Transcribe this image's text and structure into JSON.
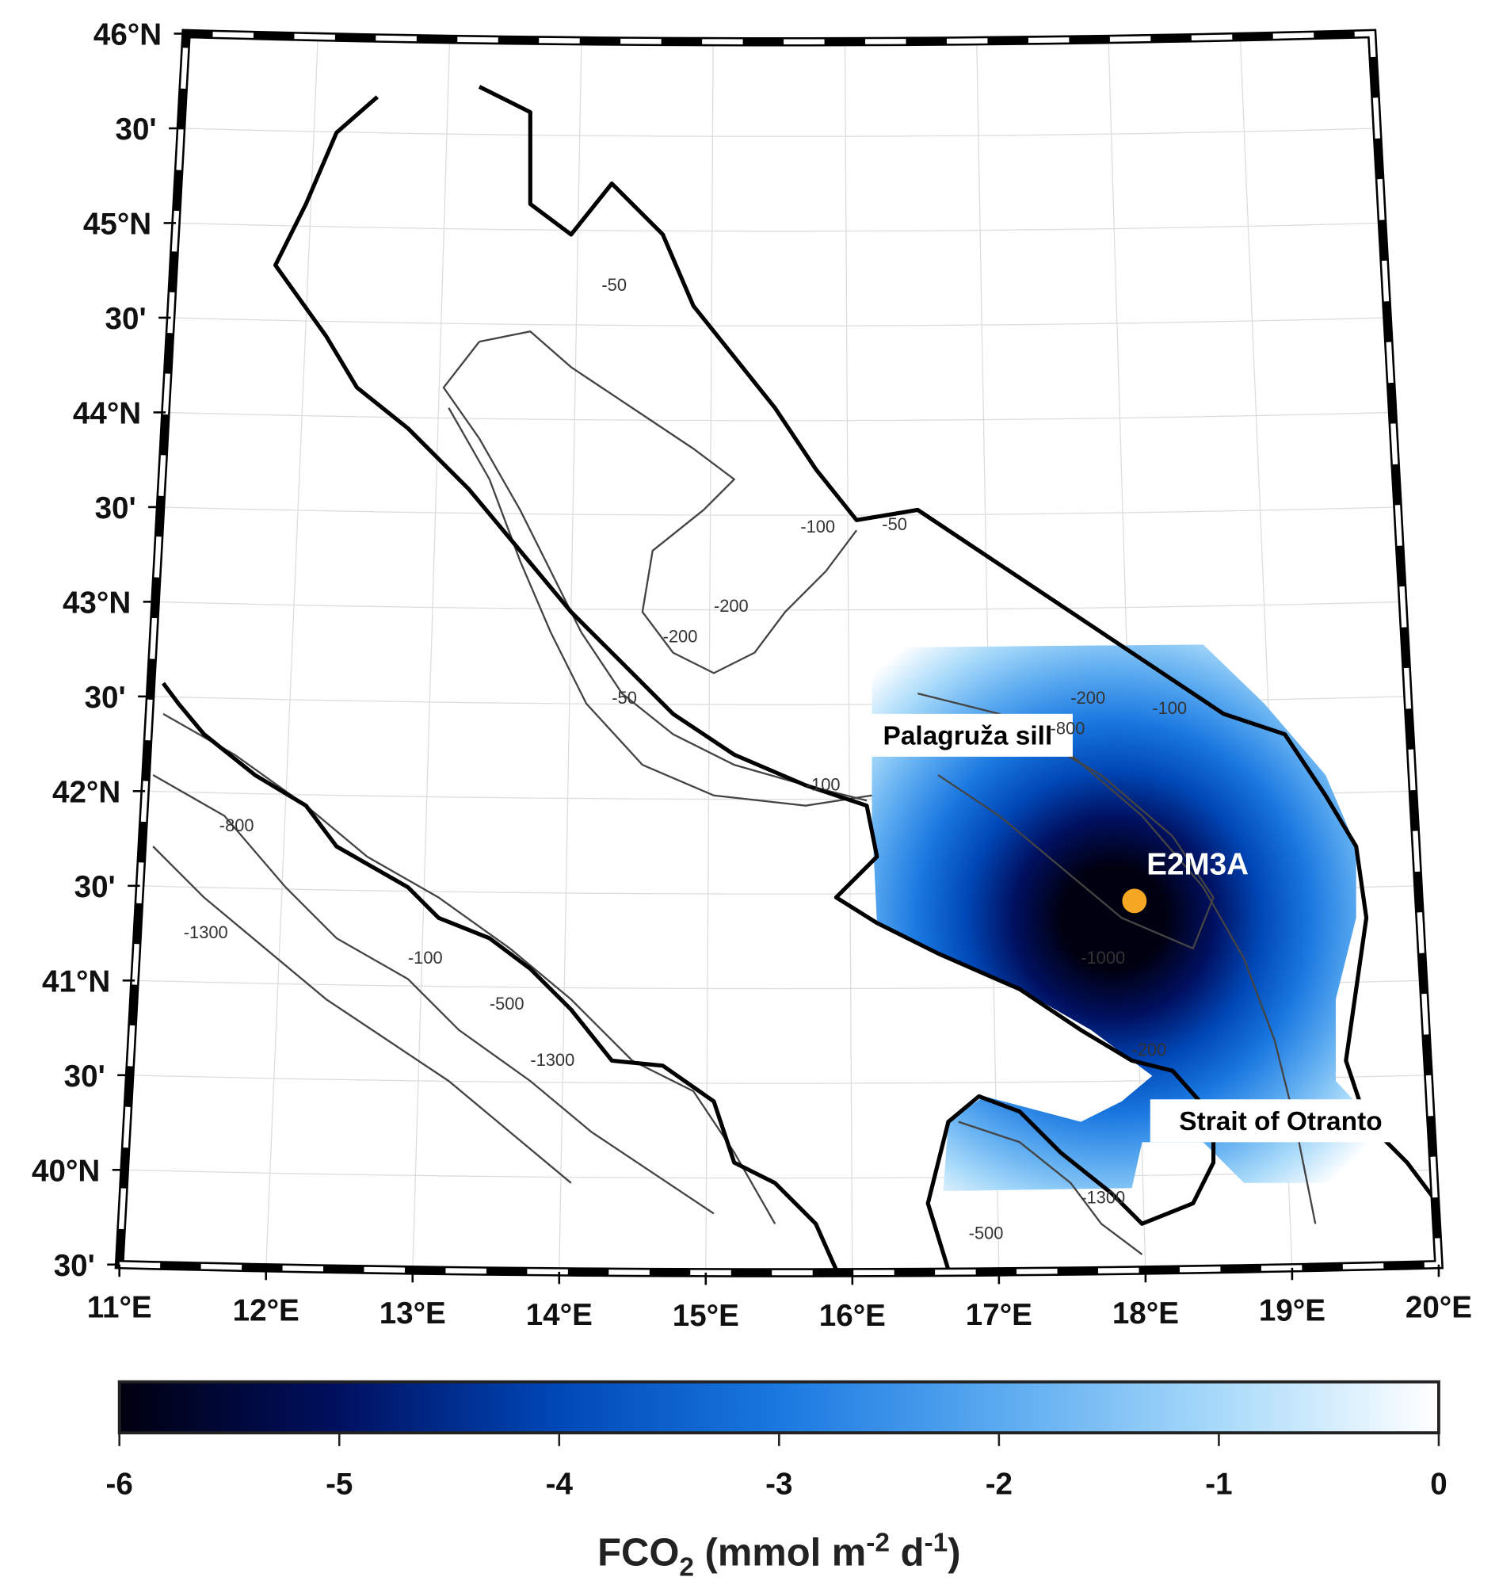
{
  "map": {
    "lonlim": [
      11,
      20
    ],
    "latlim": [
      39.5,
      46
    ],
    "lon_ticks": [
      {
        "value": 11,
        "label": "11°E"
      },
      {
        "value": 12,
        "label": "12°E"
      },
      {
        "value": 13,
        "label": "13°E"
      },
      {
        "value": 14,
        "label": "14°E"
      },
      {
        "value": 15,
        "label": "15°E"
      },
      {
        "value": 16,
        "label": "16°E"
      },
      {
        "value": 17,
        "label": "17°E"
      },
      {
        "value": 18,
        "label": "18°E"
      },
      {
        "value": 19,
        "label": "19°E"
      },
      {
        "value": 20,
        "label": "20°E"
      }
    ],
    "lat_ticks": [
      {
        "value": 46,
        "label": "46°N"
      },
      {
        "value": 45.5,
        "label": "30'"
      },
      {
        "value": 45,
        "label": "45°N"
      },
      {
        "value": 44.5,
        "label": "30'"
      },
      {
        "value": 44,
        "label": "44°N"
      },
      {
        "value": 43.5,
        "label": "30'"
      },
      {
        "value": 43,
        "label": "43°N"
      },
      {
        "value": 42.5,
        "label": "30'"
      },
      {
        "value": 42,
        "label": "42°N"
      },
      {
        "value": 41.5,
        "label": "30'"
      },
      {
        "value": 41,
        "label": "41°N"
      },
      {
        "value": 40.5,
        "label": "30'"
      },
      {
        "value": 40,
        "label": "40°N"
      },
      {
        "value": 39.5,
        "label": "30'"
      }
    ],
    "grid": true,
    "annotations": [
      "Palagruža sill",
      "Strait of Otranto"
    ],
    "station": {
      "name": "E2M3A",
      "lon": 18,
      "lat": 41.45,
      "color": "#f5a623"
    },
    "contour_labels": [
      "-50",
      "-100",
      "-200",
      "-500",
      "-800",
      "-1000",
      "-1300"
    ]
  },
  "colorbar": {
    "range": [
      -6,
      0
    ],
    "ticks": [
      -6,
      -5,
      -4,
      -3,
      -2,
      -1,
      0
    ],
    "colormap": [
      "#000010",
      "#001060",
      "#0048b8",
      "#1a78e0",
      "#5aaaf0",
      "#a8dafa",
      "#ffffff"
    ],
    "label_parts": [
      "FCO",
      "2",
      " (mmol m",
      "-2",
      " d",
      "-1",
      ")"
    ]
  }
}
